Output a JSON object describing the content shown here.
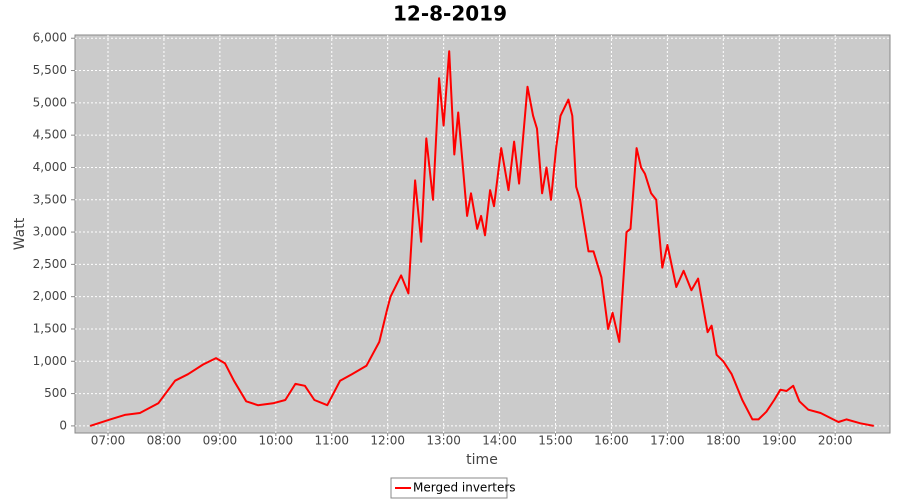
{
  "chart_data": {
    "type": "line",
    "title": "12-8-2019",
    "x_label": "time",
    "y_label": "Watt",
    "x": [
      6.68,
      7.04,
      7.3,
      7.57,
      7.9,
      8.2,
      8.43,
      8.7,
      8.93,
      9.09,
      9.25,
      9.47,
      9.68,
      9.95,
      10.17,
      10.35,
      10.52,
      10.69,
      10.92,
      11.15,
      11.36,
      11.62,
      11.85,
      11.99,
      12.05,
      12.24,
      12.37,
      12.49,
      12.6,
      12.69,
      12.81,
      12.92,
      13.0,
      13.1,
      13.19,
      13.26,
      13.42,
      13.49,
      13.6,
      13.67,
      13.74,
      13.83,
      13.9,
      14.03,
      14.16,
      14.26,
      14.35,
      14.5,
      14.6,
      14.67,
      14.76,
      14.84,
      14.92,
      15.01,
      15.09,
      15.23,
      15.3,
      15.37,
      15.44,
      15.59,
      15.68,
      15.82,
      15.94,
      16.02,
      16.14,
      16.27,
      16.34,
      16.45,
      16.53,
      16.6,
      16.71,
      16.8,
      16.91,
      17.0,
      17.16,
      17.29,
      17.43,
      17.55,
      17.72,
      17.79,
      17.88,
      18.0,
      18.15,
      18.34,
      18.52,
      18.63,
      18.77,
      18.91,
      19.02,
      19.13,
      19.25,
      19.36,
      19.52,
      19.74,
      19.92,
      20.06,
      20.2,
      20.45,
      20.69
    ],
    "series": [
      {
        "name": "Merged inverters",
        "color": "#ff0000",
        "values": [
          0,
          100,
          170,
          200,
          350,
          700,
          800,
          950,
          1050,
          970,
          700,
          380,
          320,
          350,
          400,
          650,
          620,
          400,
          320,
          700,
          800,
          930,
          1300,
          1800,
          2000,
          2330,
          2050,
          3800,
          2850,
          4450,
          3500,
          5380,
          4650,
          5800,
          4200,
          4850,
          3250,
          3600,
          3050,
          3250,
          2950,
          3650,
          3400,
          4300,
          3650,
          4400,
          3750,
          5250,
          4800,
          4600,
          3600,
          4000,
          3500,
          4300,
          4800,
          5050,
          4800,
          3700,
          3500,
          2700,
          2700,
          2300,
          1500,
          1750,
          1300,
          3000,
          3050,
          4300,
          4000,
          3900,
          3600,
          3500,
          2450,
          2800,
          2150,
          2400,
          2100,
          2280,
          1450,
          1550,
          1100,
          1000,
          800,
          400,
          100,
          100,
          220,
          400,
          560,
          540,
          620,
          380,
          250,
          200,
          120,
          60,
          100,
          40,
          0
        ]
      }
    ],
    "xlim": [
      6.41,
      20.98
    ],
    "xticks": [
      {
        "value": 7,
        "label": "07:00"
      },
      {
        "value": 8,
        "label": "08:00"
      },
      {
        "value": 9,
        "label": "09:00"
      },
      {
        "value": 10,
        "label": "10:00"
      },
      {
        "value": 11,
        "label": "11:00"
      },
      {
        "value": 12,
        "label": "12:00"
      },
      {
        "value": 13,
        "label": "13:00"
      },
      {
        "value": 14,
        "label": "14:00"
      },
      {
        "value": 15,
        "label": "15:00"
      },
      {
        "value": 16,
        "label": "16:00"
      },
      {
        "value": 17,
        "label": "17:00"
      },
      {
        "value": 18,
        "label": "18:00"
      },
      {
        "value": 19,
        "label": "19:00"
      },
      {
        "value": 20,
        "label": "20:00"
      }
    ],
    "ylim": [
      -110,
      6050
    ],
    "yticks": [
      0,
      500,
      {
        "value": 1000,
        "label": "1,000"
      },
      {
        "value": 1500,
        "label": "1,500"
      },
      {
        "value": 2000,
        "label": "2,000"
      },
      {
        "value": 2500,
        "label": "2,500"
      },
      {
        "value": 3000,
        "label": "3,000"
      },
      {
        "value": 3500,
        "label": "3,500"
      },
      {
        "value": 4000,
        "label": "4,000"
      },
      {
        "value": 4500,
        "label": "4,500"
      },
      {
        "value": 5000,
        "label": "5,000"
      },
      {
        "value": 5500,
        "label": "5,500"
      },
      {
        "value": 6000,
        "label": "6,000"
      }
    ],
    "grid": true,
    "legend": "bottom"
  }
}
